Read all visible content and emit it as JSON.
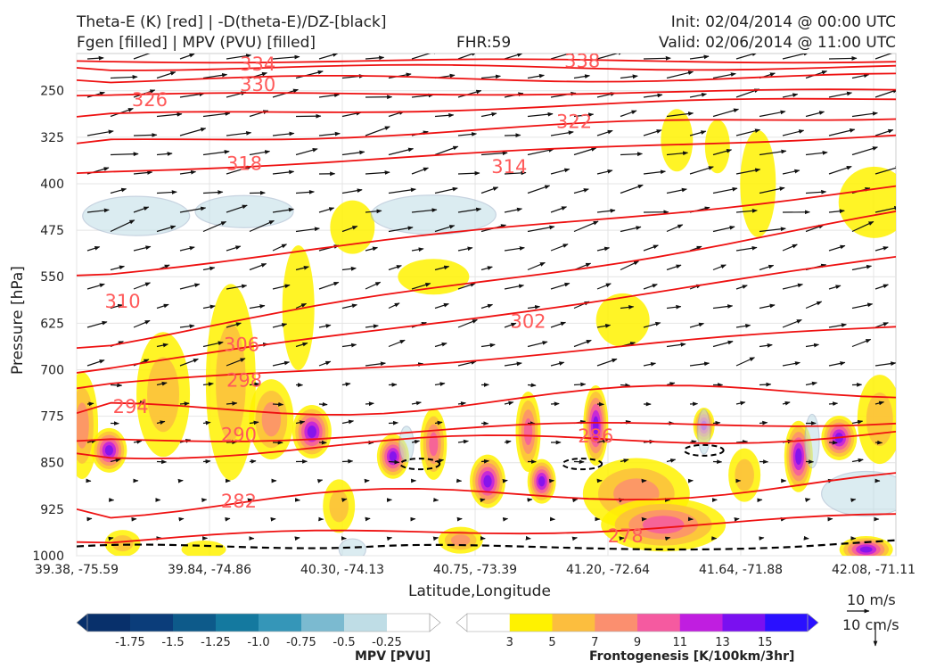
{
  "header": {
    "title_line1": "Theta-E (K) [red] | -D(theta-E)/DZ-[black]",
    "title_line2": "Fgen [filled] | MPV (PVU) [filled]",
    "fhr": "FHR:59",
    "init": "Init: 02/04/2014 @ 00:00 UTC",
    "valid": "Valid: 02/06/2014 @ 11:00 UTC"
  },
  "chart_data": {
    "type": "cross-section",
    "xlabel": "Latitude,Longitude",
    "ylabel": "Pressure [hPa]",
    "x_ticks": [
      "39.38, -75.59",
      "39.84, -74.86",
      "40.30, -74.13",
      "40.75, -73.39",
      "41.20, -72.64",
      "41.64, -71.88",
      "42.08, -71.11"
    ],
    "y_ticks": [
      250,
      325,
      400,
      475,
      550,
      625,
      700,
      775,
      850,
      925,
      1000
    ],
    "ylim": [
      1000,
      190
    ],
    "grid": true,
    "theta_e_lines": [
      {
        "label": "338",
        "p_left": 202,
        "p_right": 202
      },
      {
        "label": "334",
        "p_left": 213,
        "p_right": 212
      },
      {
        "label": "330",
        "p_left": 233,
        "p_right": 228
      },
      {
        "label": "326",
        "p_left": 258,
        "p_right": 250
      },
      {
        "label": "322",
        "p_left": 292,
        "p_right": 262
      },
      {
        "label": "318",
        "p_left": 335,
        "p_right": 290
      },
      {
        "label": "314",
        "p_left": 383,
        "p_right": 320
      },
      {
        "label": "310",
        "p_left": 548,
        "p_right": 405
      },
      {
        "label": "306",
        "p_left": 665,
        "p_right": 450
      },
      {
        "label": "302",
        "p_left": 705,
        "p_right": 520
      },
      {
        "label": "298",
        "p_left": 730,
        "p_right": 630
      },
      {
        "label": "294",
        "p_left": 770,
        "p_right": 730
      },
      {
        "label": "290",
        "p_left": 815,
        "p_right": 780
      },
      {
        "label": "286",
        "p_left": 835,
        "p_right": 800
      },
      {
        "label": "282",
        "p_left": 925,
        "p_right": 880
      },
      {
        "label": "278",
        "p_left": 978,
        "p_right": 940
      }
    ],
    "theta_e_labels": [
      {
        "text": "338",
        "lat": 41.25,
        "p": 202
      },
      {
        "text": "334",
        "lat": 40.05,
        "p": 207
      },
      {
        "text": "330",
        "lat": 40.05,
        "p": 240
      },
      {
        "text": "326",
        "lat": 39.65,
        "p": 265
      },
      {
        "text": "322",
        "lat": 41.22,
        "p": 300
      },
      {
        "text": "318",
        "lat": 40.0,
        "p": 368
      },
      {
        "text": "314",
        "lat": 40.98,
        "p": 373
      },
      {
        "text": "310",
        "lat": 39.55,
        "p": 590
      },
      {
        "text": "306",
        "lat": 39.99,
        "p": 660
      },
      {
        "text": "302",
        "lat": 41.05,
        "p": 622
      },
      {
        "text": "298",
        "lat": 40.0,
        "p": 717
      },
      {
        "text": "294",
        "lat": 39.58,
        "p": 760
      },
      {
        "text": "290",
        "lat": 39.98,
        "p": 805
      },
      {
        "text": "286",
        "lat": 41.3,
        "p": 807
      },
      {
        "text": "282",
        "lat": 39.98,
        "p": 912
      },
      {
        "text": "278",
        "lat": 41.41,
        "p": 968
      }
    ],
    "mpv_colorbar": {
      "title": "MPV [PVU]",
      "ticks": [
        "-1.75",
        "-1.5",
        "-1.25",
        "-1.0",
        "-0.75",
        "-0.5",
        "-0.25"
      ],
      "colors": [
        "#08306b",
        "#0b3d7a",
        "#0d5a8a",
        "#14799f",
        "#3596b8",
        "#7bbad0",
        "#bfdde6",
        "#ffffff"
      ]
    },
    "fgen_colorbar": {
      "title": "Frontogenesis [K/100km/3hr]",
      "ticks": [
        "3",
        "5",
        "7",
        "9",
        "11",
        "13",
        "15"
      ],
      "colors": [
        "#ffffff",
        "#fff200",
        "#fcbe3e",
        "#fb8f6f",
        "#f55aa0",
        "#c01ee0",
        "#7a10f0",
        "#2a10ff"
      ]
    },
    "vector_keys": [
      "10 m/s",
      "10 cm/s"
    ]
  }
}
